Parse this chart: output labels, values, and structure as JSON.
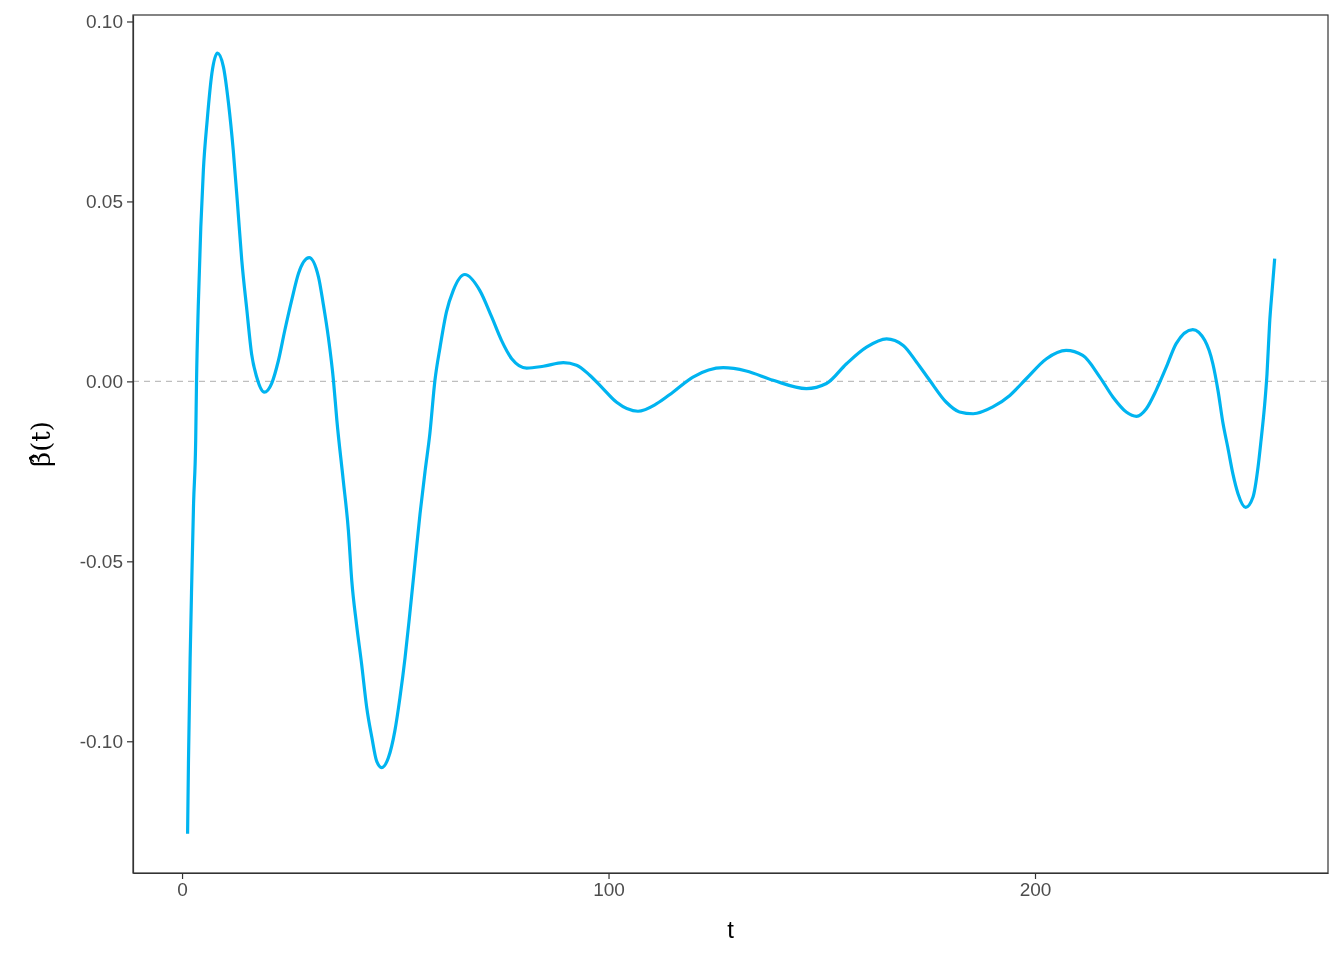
{
  "chart_data": {
    "type": "line",
    "xlabel": "t",
    "ylabel": "β̂(t)",
    "xlim": [
      -11.5,
      268.7
    ],
    "ylim": [
      -0.1366,
      0.1018
    ],
    "xticks": [
      0,
      100,
      200
    ],
    "yticks": [
      {
        "value": -0.1,
        "label": "-0.10"
      },
      -0.05,
      {
        "value": 0,
        "label": "0.00"
      },
      0.05,
      {
        "value": 0.1,
        "label": "0.10"
      }
    ],
    "ref_lines": [
      {
        "axis": "y",
        "value": 0,
        "color": "#bebebe",
        "line_style": "dashed"
      }
    ],
    "series": [
      {
        "color": "#00b4f0",
        "line_style": "solid",
        "marker": "none",
        "x": [
          1.3,
          1.5,
          1.9,
          2.3,
          2.7,
          3.2,
          3.4,
          3.8,
          4.4,
          5.0,
          5.9,
          7.0,
          8.3,
          9.7,
          10.9,
          12.0,
          13.0,
          14.0,
          15.2,
          16.3,
          17.5,
          19.3,
          21.0,
          22.6,
          24.1,
          25.7,
          27.3,
          29.8,
          32.0,
          33.1,
          34.3,
          35.5,
          36.3,
          37.8,
          39.0,
          39.8,
          40.9,
          42.1,
          43.3,
          44.5,
          45.6,
          46.8,
          48.4,
          49.9,
          51.1,
          52.3,
          53.4,
          54.6,
          55.8,
          57.0,
          58.1,
          59.3,
          60.5,
          62.0,
          63.6,
          66.3,
          69.8,
          72.6,
          74.9,
          77.3,
          80.8,
          84.7,
          89.4,
          92.5,
          95.6,
          98.7,
          101.9,
          106.9,
          111.3,
          115.1,
          119.8,
          126.9,
          132.3,
          138.6,
          146.4,
          151.1,
          155.8,
          160.5,
          165.2,
          169.1,
          172.2,
          175.3,
          179.2,
          182.3,
          185.5,
          190.1,
          194.1,
          198.0,
          202.7,
          207.3,
          211.2,
          215.2,
          218.3,
          221.4,
          223.8,
          226.1,
          228.4,
          230.8,
          233.1,
          237.0,
          239.8,
          241.7,
          242.9,
          244.1,
          245.2,
          246.4,
          247.6,
          249.4,
          251.1,
          252.3,
          253.0,
          253.8,
          254.4,
          255.0,
          255.6,
          256.2
        ],
        "values": [
          -0.1257,
          -0.1063,
          -0.0768,
          -0.0544,
          -0.034,
          -0.0164,
          0.0003,
          0.0207,
          0.0429,
          0.0587,
          0.0726,
          0.0856,
          0.0912,
          0.0874,
          0.0772,
          0.0643,
          0.0494,
          0.0337,
          0.0198,
          0.0077,
          0.0012,
          -0.003,
          -0.0006,
          0.0058,
          0.0142,
          0.0225,
          0.03,
          0.0344,
          0.029,
          0.0216,
          0.0123,
          0.0003,
          -0.0108,
          -0.0275,
          -0.0414,
          -0.0554,
          -0.0674,
          -0.0785,
          -0.0906,
          -0.0989,
          -0.1054,
          -0.1073,
          -0.1045,
          -0.0971,
          -0.0878,
          -0.0767,
          -0.0646,
          -0.0507,
          -0.0368,
          -0.0248,
          -0.0146,
          0.0003,
          0.0095,
          0.0193,
          0.0253,
          0.0297,
          0.0253,
          0.0179,
          0.0114,
          0.0063,
          0.0037,
          0.0042,
          0.0052,
          0.0045,
          0.0017,
          -0.002,
          -0.0058,
          -0.0083,
          -0.0062,
          -0.003,
          0.0012,
          0.0038,
          0.0029,
          0.0003,
          -0.002,
          -0.0006,
          0.0049,
          0.0095,
          0.0118,
          0.01,
          0.0054,
          0.0003,
          -0.0058,
          -0.0085,
          -0.009,
          -0.0071,
          -0.0039,
          0.0008,
          0.0063,
          0.0086,
          0.0072,
          0.0012,
          -0.0044,
          -0.0085,
          -0.0097,
          -0.0076,
          -0.0025,
          0.004,
          0.0105,
          0.0144,
          0.0114,
          0.0049,
          -0.0025,
          -0.0118,
          -0.0183,
          -0.0257,
          -0.0312,
          -0.035,
          -0.0322,
          -0.0238,
          -0.0164,
          -0.0071,
          0.0021,
          0.016,
          0.0253,
          0.0341
        ]
      }
    ]
  }
}
